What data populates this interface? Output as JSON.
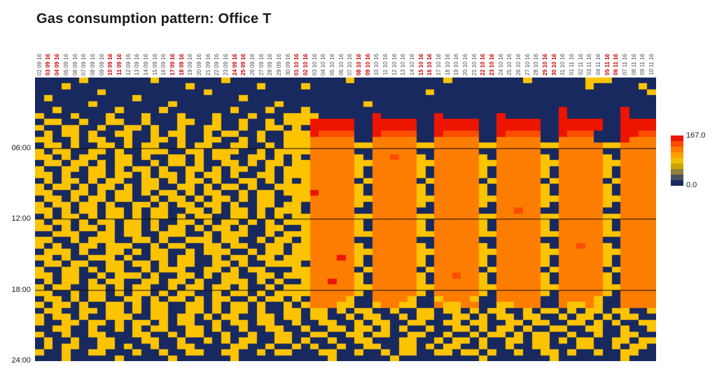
{
  "title": "Gas consumption pattern: Office T",
  "legend": {
    "max_label": "167.0",
    "min_label": "0.0",
    "colors_top_to_bottom": [
      "#ed1400",
      "#fb4d00",
      "#fd7d00",
      "#fd9f00",
      "#f0bd00",
      "#cda400",
      "#8f7e3e",
      "#4a4f5e",
      "#17295f"
    ]
  },
  "chart_data": {
    "type": "heatmap",
    "title": "Gas consumption pattern: Office T",
    "value_range": [
      0.0,
      167.0
    ],
    "row_interval_minutes": 30,
    "n_rows": 48,
    "n_cols": 70,
    "x_labels": [
      "02 09 16",
      "03 09 16",
      "04 09 16",
      "05 09 16",
      "06 09 16",
      "07 09 16",
      "08 09 16",
      "09 09 16",
      "10 09 16",
      "11 09 16",
      "12 09 16",
      "13 09 16",
      "14 09 16",
      "15 09 16",
      "16 09 16",
      "17 09 16",
      "18 09 16",
      "19 09 16",
      "20 09 16",
      "21 09 16",
      "22 09 16",
      "23 09 16",
      "24 09 16",
      "25 09 16",
      "26 09 16",
      "27 09 16",
      "28 09 16",
      "29 09 16",
      "30 09 16",
      "01 10 16",
      "02 10 16",
      "03 10 16",
      "04 10 16",
      "05 10 16",
      "06 10 16",
      "07 10 16",
      "08 10 16",
      "09 10 16",
      "10 10 16",
      "11 10 16",
      "12 10 16",
      "13 10 16",
      "14 10 16",
      "15 10 16",
      "16 10 16",
      "17 10 16",
      "18 10 16",
      "19 10 16",
      "20 10 16",
      "21 10 16",
      "22 10 16",
      "23 10 16",
      "24 10 16",
      "25 10 16",
      "26 10 16",
      "27 10 16",
      "28 10 16",
      "29 10 16",
      "30 10 16",
      "31 10 16",
      "01 11 16",
      "02 11 16",
      "03 11 16",
      "04 11 16",
      "05 11 16",
      "06 11 16",
      "07 11 16",
      "08 11 16",
      "09 11 16",
      "10 11 16"
    ],
    "weekend_columns": [
      1,
      2,
      8,
      9,
      15,
      16,
      22,
      23,
      29,
      30,
      36,
      37,
      43,
      44,
      50,
      51,
      57,
      58,
      64,
      65
    ],
    "label_colors": {
      "weekday": "#4d4d4d",
      "weekend": "#cc0000"
    },
    "palette": {
      "n": "#17295f",
      "y": "#fcc400",
      "o": "#fd7d00",
      "O": "#fb4d00",
      "r": "#ed1400"
    },
    "y_ticks": [
      {
        "label": "06:00",
        "row": 12
      },
      {
        "label": "12:00",
        "row": 24
      },
      {
        "label": "18:00",
        "row": 36
      },
      {
        "label": "24:00",
        "row": 48
      }
    ],
    "gridline_rows": [
      12,
      24,
      36
    ],
    "grid": [
      "nnnnnynnnnnnnynnnnnnnynnnnnnnnnnnnnynnnnnnnnnnynnnnnnnnynnnnnnyyynnnnn",
      "nnnynnnnnnnnnnnnnynnnnnnnynnnnynnnnnnnnnnnnnnnnnnnnnnnnnnnnnnnynnnnnynyn",
      "nnnnnnnynnnnnnnnnnnynnnnnnnnnnnnnnnnnnnnnnnnynnnnnnnnnnnnnnnnnnnnnnnny",
      "nynnnnnnnnnynnnnnnnnnnnynnnnnnnnnnnnnnnnnnnnnnnnnnnnnnnnnnnnnnnnnnnnnn",
      "nnnnnnynnnnnnnnynnnnnnnnnnnynnnnnnnnnynnnnnnnnnnnnnnnnnnnnnnnnnnnnnnnn",
      "nnynnnnnnynnnnynnnnnnnynnnynnnynnnnnnnnnnnnnnnnnnnnnnnnnnnnrnnnnnnrnnn",
      "ynnnynnnynnnynnnynnnynnnynnnyyyynnnnnnrnnnnnnrnnnnnnrnnnnnnrnnnnnnrnnn",
      "nyynnynnyynnynnnyynnynnynnynyyyrrrrrnnrrrrrnnrrrrrnnrrrrrnnrrrrrnnrrrr",
      "ynnyynnynnyynynnynnyynnynnyynynrrrrrnnrrrrrnnrrrrrnnrrrrrnnrrrrrnnrrrr",
      "nynyynynnyynnynyynnynyynnynnyyyrOOOOnnrOOOOnnrOOOOnnrOOOOnnrOOOnnnrrOO",
      "yynnynyynnynnyynynnyynnynynnyyyooooonnooooonnooooonnooooonnoooonnnrooo",
      "nyynynnyynynyynnynyynnyynnynyyyoooooyyoooooyyoooooyyoooooyyoooooyyoooo",
      "ynyynnyynynnyyynnyynyyynnynyyyyooooonnooooonnooooonnooooonnooooonnoooo",
      "yynynyynnyynynnyynynyynnyynynynoooooynooOooynoooooynoooooynoooooynoooo",
      "nyynyynynyynnynyynynnyynynyynyyoooooyyoooooyyoooooyyoooooyyoooooyyoooo",
      "ynnyynyynynyynynnyynynyynnynyyyoooooynoooooynoooooynoooooynoooooynoooo",
      "yynynnyynyynynyynynyynynnyynyyyoooooynoooooynoooooynoooooynoooooynoooo",
      "nynyynynyynnyynynyynynnyynynynyooooonyooooonyooooonyooooonyooooonyoooo",
      "ynyynynyynynyynnyynynyynynnyyyyoooooynoooooynoooooynoooooynoooooynoooo",
      "yynnyynynyynynyynynyynnynyynyyyrooooynoooooynoooooynoooooynoooooynoooo",
      "nyynynyynyynnynyynynyynynyynnyyoooooyyoooooyyoooooyyoooooyyoooooyyoooo",
      "ynyynyynynnyynynyynyynynnyynyynoooooynoooooynoooooynoooooynoooooynoooo",
      "yynynyynyynynyynnyynynyynynyyynooooonnooooonnooooonnooOoonnooooonnoooo",
      "nynyynynyynynyynynyynnyynynynyyoooooyyoooooyyoooooyyoooooyyoooooyyoooo",
      "ynyynynyynyynynnyynynyynynynyyyoooooynoooooynoooooynoooooynoooooynoooo",
      "yynynyynynyynynyynynyynynnyynnyoooooynoooooynoooooynoooooynoooooynoooo",
      "nnyyynnyynyynnyyynnynyyynnynyyyoooooyyoooooyyoooooyyoooooyyoooooyyoooo",
      "yynnynyyynnyynynnyyynyynnynyynyooooonnooooonnooooonnooooonnooooonnoooo",
      "ynynnyynyyynnynyynnyynyynnyynyyoooooynoooooynoooooynoooooynooOooynoooo",
      "nyyynynnyynynyynnynyyynnynyynyyoooooyyoooooyyoooooyyoooooyyoooooyyoooo",
      "yynynnyyynynnyynyynnynyynyynyyyoooroynoooooynoooooynoooooynoooooynoooo",
      "nyynyynnyynyynynyynnyynynnyyyynoooooynoooooynoooooynoooooynoooooynoooo",
      "ynnyynynyynnynyyynnyynynyynnnyyooooonyooooonyooooonyooooonyooooonyoooo",
      "yynyynnynyyynynnyynynyynnyynyyyoooooynoooooynooOooynoooooynoooooynoooo",
      "nynyynynyynnyynyynynnyyynynynnyoorooynoooooynoooooynoooooynoooooynoooo",
      "ynyynnyynynyynnynyynyynynnynyyyoooooyyoooooyyoooooyyoooooyyoooooyyoooo",
      "yynnynyynynyynynyynnynyynynyyyyoooooynoooooynoooooynoooooynoooooynoooo",
      "nyynynyynnyynynyynynyynnynyynynooooynnooooynnyoooynnooooonnooooynnoooo",
      "ynyynynnyynynyynnyynynyynynnynyoooyynnyooyynnoyyoonnyyooonnoyyoynnoooo",
      "nyynnyynyynynyynnyynynyynynnyynyynynyynnynnyynyynynyynnynyynynyynyynny",
      "ynyynynnyyynnyynyynynyynnyynyynyynnynyynnynyynnyynynyynyynnynyynynyynn",
      "ynnyynyynynyynynyynnynyynyynnynnyynnynyynnyynnyynyynnyynyynnyynynynnyy",
      "nnyynnynnynynyynnyynynnynnyynnynnyynyynynynnynnyynynyynynnyynnyynnynny",
      "ynnynnyynnnyynnynyynnynnynnyynnyynnyynyynnyynnynnynyynynyynnynnynnyynn",
      "nynnynnyynnnyynnynnynynyynnyynynnynnyynnnyynnynyynynnyynyynynyynnyynyy",
      "nynyynnyynynnynnyynnnnyynnynnynynnynnyynnyynynyynnynnynnyynnnyynnynyyn",
      "ynnynnyynnnynnynnyynnyynnynyynnnyynnynnynyynnyynyynynnynnyynynnynnyynn",
      "nnnynnnnnynnnnnynnnnnnynnnnnnnnnnynnnnnnynnnnnnnnnynnnnnnnynnnnnnnynnn"
    ]
  }
}
